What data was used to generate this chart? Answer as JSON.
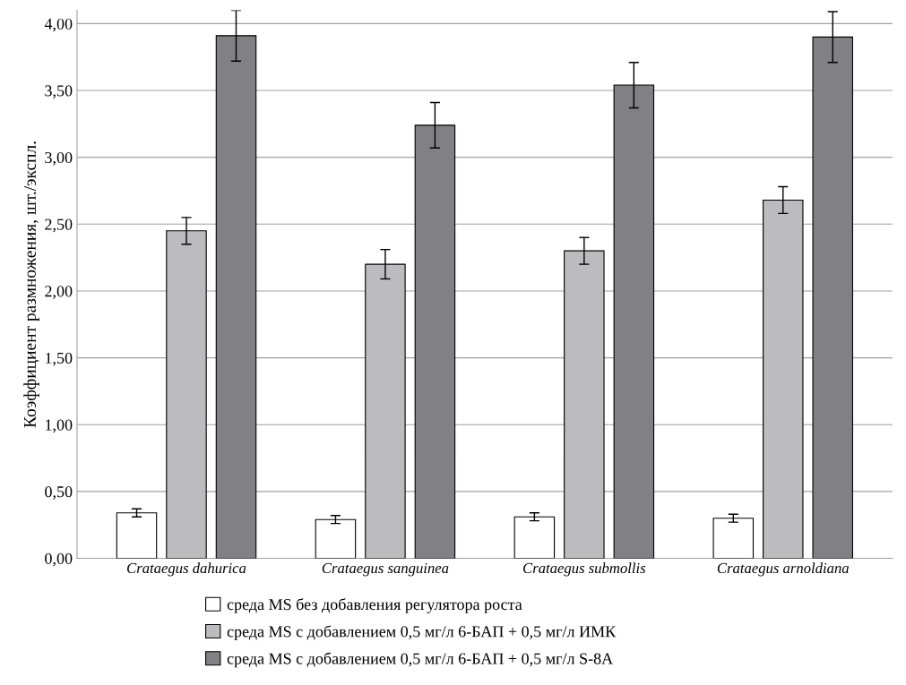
{
  "chart_data": {
    "type": "bar",
    "ylabel": "Коэффициент размножения, шт./экспл.",
    "categories": [
      "Crataegus dahurica",
      "Crataegus sanguinea",
      "Crataegus submollis",
      "Crataegus arnoldiana"
    ],
    "series": [
      {
        "name": "среда MS без добавления регулятора роста",
        "color": "#ffffff",
        "values": [
          0.34,
          0.29,
          0.31,
          0.3
        ],
        "errors": [
          0.03,
          0.03,
          0.03,
          0.03
        ]
      },
      {
        "name": "среда MS с добавлением 0,5 мг/л 6-БАП + 0,5 мг/л ИМК",
        "color": "#bcbcbf",
        "values": [
          2.45,
          2.2,
          2.3,
          2.68
        ],
        "errors": [
          0.1,
          0.11,
          0.1,
          0.1
        ]
      },
      {
        "name": "среда MS с добавлением 0,5 мг/л 6-БАП + 0,5 мг/л S-8A",
        "color": "#808085",
        "values": [
          3.91,
          3.24,
          3.54,
          3.9
        ],
        "errors": [
          0.19,
          0.17,
          0.17,
          0.19
        ]
      }
    ],
    "ylim": [
      0,
      4.1
    ],
    "yticks": [
      {
        "value": 0,
        "label": "0,00"
      },
      {
        "value": 0.5,
        "label": "0,50"
      },
      {
        "value": 1,
        "label": "1,00"
      },
      {
        "value": 1.5,
        "label": "1,50"
      },
      {
        "value": 2,
        "label": "2,00"
      },
      {
        "value": 2.5,
        "label": "2,50"
      },
      {
        "value": 3,
        "label": "3,00"
      },
      {
        "value": 3.5,
        "label": "3,50"
      },
      {
        "value": 4,
        "label": "4,00"
      }
    ],
    "grid": "y",
    "legend": "bottom"
  }
}
